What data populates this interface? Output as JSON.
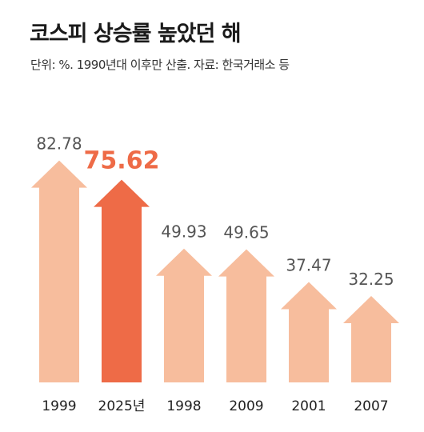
{
  "title": "코스피 상승률 높았던 해",
  "subtitle": "단위: %. 1990년대 이후만 산출. 자료: 한국거래소 등",
  "colors": {
    "bar": "#f7bd9d",
    "highlight": "#ee6b47",
    "label": "#555555"
  },
  "chart_data": {
    "type": "bar",
    "categories": [
      "1999",
      "2025년",
      "1998",
      "2009",
      "2001",
      "2007"
    ],
    "values": [
      82.78,
      75.62,
      49.93,
      49.65,
      37.47,
      32.25
    ],
    "value_labels": [
      "82.78",
      "75.62",
      "49.93",
      "49.65",
      "37.47",
      "32.25"
    ],
    "highlight_index": 1,
    "unit": "%",
    "grid": false,
    "legend": "none"
  }
}
